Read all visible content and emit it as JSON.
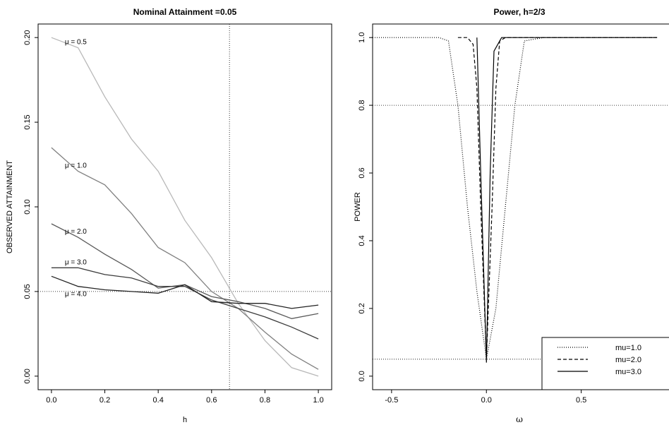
{
  "chart_data": [
    {
      "type": "line",
      "title": "Nominal Attainment =0.05",
      "xlabel": "h",
      "ylabel": "OBSERVED ATTAINMENT",
      "xlim": [
        -0.05,
        1.05
      ],
      "ylim": [
        -0.008,
        0.208
      ],
      "xticks": [
        "0.0",
        "0.2",
        "0.4",
        "0.6",
        "0.8",
        "1.0"
      ],
      "yticks": [
        "0.00",
        "0.05",
        "0.10",
        "0.15",
        "0.20"
      ],
      "hline": 0.05,
      "vline": 0.667,
      "x": [
        0.0,
        0.1,
        0.2,
        0.3,
        0.4,
        0.5,
        0.6,
        0.7,
        0.8,
        0.9,
        1.0
      ],
      "series": [
        {
          "name": "μ = 0.5",
          "color": "#b8b8b8",
          "values": [
            0.2,
            0.194,
            0.165,
            0.14,
            0.121,
            0.092,
            0.07,
            0.043,
            0.021,
            0.005,
            0.0
          ]
        },
        {
          "name": "μ = 1.0",
          "color": "#808080",
          "values": [
            0.135,
            0.121,
            0.113,
            0.096,
            0.076,
            0.067,
            0.05,
            0.04,
            0.026,
            0.013,
            0.004
          ]
        },
        {
          "name": "μ = 2.0",
          "color": "#5a5a5a",
          "values": [
            0.09,
            0.082,
            0.072,
            0.063,
            0.052,
            0.054,
            0.047,
            0.044,
            0.04,
            0.034,
            0.037
          ]
        },
        {
          "name": "μ = 3.0",
          "color": "#3c3c3c",
          "values": [
            0.064,
            0.064,
            0.06,
            0.058,
            0.053,
            0.053,
            0.045,
            0.04,
            0.035,
            0.029,
            0.022
          ]
        },
        {
          "name": "μ = 4.0",
          "color": "#222222",
          "values": [
            0.059,
            0.053,
            0.051,
            0.05,
            0.049,
            0.054,
            0.044,
            0.043,
            0.043,
            0.04,
            0.042
          ]
        }
      ]
    },
    {
      "type": "line",
      "title": "Power, h=2/3",
      "xlabel": "ω",
      "ylabel": "POWER",
      "xlim": [
        -0.6,
        1.0
      ],
      "ylim": [
        -0.04,
        1.04
      ],
      "xticks": [
        "-0.5",
        "0.0",
        "0.5",
        "1.0"
      ],
      "yticks": [
        "0.0",
        "0.2",
        "0.4",
        "0.6",
        "0.8",
        "1.0"
      ],
      "hlines": [
        0.8,
        0.05
      ],
      "legend_position": "bottom-right",
      "series": [
        {
          "name": "mu=1.0",
          "dash": "dotted",
          "x": [
            -0.6,
            -0.25,
            -0.2,
            -0.15,
            -0.1,
            -0.05,
            0.0,
            0.05,
            0.1,
            0.15,
            0.2,
            0.3,
            0.9
          ],
          "y": [
            1.0,
            1.0,
            0.99,
            0.8,
            0.5,
            0.25,
            0.05,
            0.2,
            0.5,
            0.8,
            0.99,
            1.0,
            1.0
          ]
        },
        {
          "name": "mu=2.0",
          "dash": "dashed",
          "x": [
            -0.15,
            -0.1,
            -0.07,
            -0.05,
            -0.03,
            0.0,
            0.03,
            0.05,
            0.07,
            0.1,
            0.9
          ],
          "y": [
            1.0,
            1.0,
            0.98,
            0.85,
            0.5,
            0.05,
            0.5,
            0.85,
            0.99,
            1.0,
            1.0
          ]
        },
        {
          "name": "mu=3.0",
          "dash": "solid",
          "x": [
            -0.05,
            -0.03,
            0.0,
            0.02,
            0.04,
            0.06,
            0.08,
            0.1,
            0.9
          ],
          "y": [
            1.0,
            0.6,
            0.04,
            0.6,
            0.96,
            0.98,
            1.0,
            1.0,
            1.0
          ]
        }
      ]
    }
  ]
}
